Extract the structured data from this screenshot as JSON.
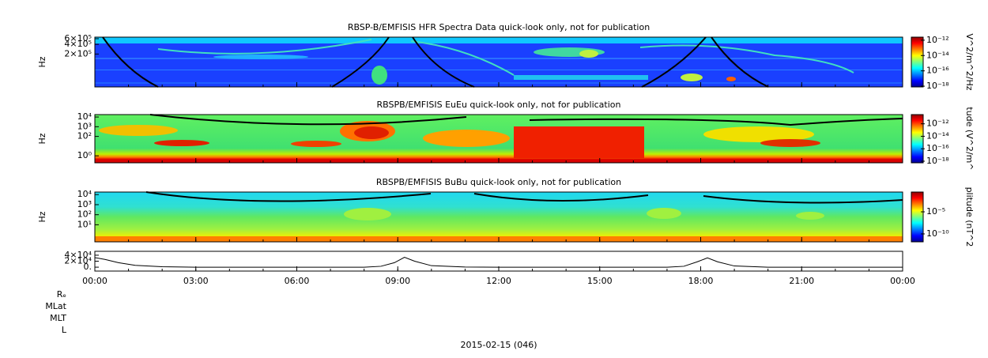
{
  "chart_data": [
    {
      "type": "spectrogram",
      "title": "RBSP-B/EMFISIS  HFR Spectra Data quick-look only, not for publication",
      "ylabel": "Hz",
      "log_y": true,
      "xlim": [
        0,
        24
      ],
      "ylim": [
        19000,
        670000
      ],
      "yticks": [
        {
          "value": 600000,
          "label": "6×10⁵"
        },
        {
          "value": 400000,
          "label": "4×10⁵"
        },
        {
          "value": 200000,
          "label": "2×10⁵"
        }
      ],
      "colorbar": {
        "label": "V^2/m^2/Hz",
        "zlim": [
          8e-19,
          2.5e-12
        ],
        "ticks": [
          {
            "value": 1e-12,
            "label": "10⁻¹²"
          },
          {
            "value": 1e-14,
            "label": "10⁻¹⁴"
          },
          {
            "value": 1e-16,
            "label": "10⁻¹⁶"
          },
          {
            "value": 1e-18,
            "label": "10⁻¹⁸"
          }
        ]
      }
    },
    {
      "type": "spectrogram",
      "title": "RBSPB/EMFISIS  EuEu quick-look only, not for publication",
      "ylabel": "Hz",
      "log_y": true,
      "xlim": [
        0,
        24
      ],
      "ylim": [
        0.19,
        17800
      ],
      "yticks": [
        {
          "value": 10000,
          "label": "10⁴"
        },
        {
          "value": 1000,
          "label": "10³"
        },
        {
          "value": 100,
          "label": "10²"
        },
        {
          "value": 1,
          "label": "10⁰"
        }
      ],
      "colorbar": {
        "label": "tude (V^2/m^",
        "zlim": [
          5.6e-19,
          3e-11
        ],
        "ticks": [
          {
            "value": 1e-12,
            "label": "10⁻¹²"
          },
          {
            "value": 1e-14,
            "label": "10⁻¹⁴"
          },
          {
            "value": 1e-16,
            "label": "10⁻¹⁶"
          },
          {
            "value": 1e-18,
            "label": "10⁻¹⁸"
          }
        ]
      }
    },
    {
      "type": "spectrogram",
      "title": "RBSPB/EMFISIS  BuBu quick-look only, not for publication",
      "ylabel": "Hz",
      "log_y": true,
      "xlim": [
        0,
        24
      ],
      "ylim": [
        0.2,
        18000
      ],
      "yticks": [
        {
          "value": 10000,
          "label": "10⁴"
        },
        {
          "value": 1000,
          "label": "10³"
        },
        {
          "value": 100,
          "label": "10²"
        },
        {
          "value": 10,
          "label": "10¹"
        }
      ],
      "colorbar": {
        "label": "plitude (nT^2",
        "zlim": [
          1.6e-12,
          0.3
        ],
        "ticks": [
          {
            "value": 1e-05,
            "label": "10⁻⁵"
          },
          {
            "value": 1e-10,
            "label": "10⁻¹⁰"
          }
        ]
      }
    },
    {
      "type": "line",
      "xlim": [
        0,
        24
      ],
      "ylim": [
        -13000,
        53000
      ],
      "yticks": [
        {
          "value": 40000,
          "label": "4×10⁴"
        },
        {
          "value": 20000,
          "label": "2×10⁴"
        },
        {
          "value": 0,
          "label": "0."
        }
      ],
      "xticks": [
        {
          "value": 0,
          "label": "00:00"
        },
        {
          "value": 3,
          "label": "03:00"
        },
        {
          "value": 6,
          "label": "06:00"
        },
        {
          "value": 9,
          "label": "09:00"
        },
        {
          "value": 12,
          "label": "12:00"
        },
        {
          "value": 15,
          "label": "15:00"
        },
        {
          "value": 18,
          "label": "18:00"
        },
        {
          "value": 21,
          "label": "21:00"
        },
        {
          "value": 24,
          "label": "00:00"
        }
      ],
      "x": [
        0,
        0.3,
        0.7,
        1.2,
        2,
        3,
        8,
        8.5,
        8.9,
        9.2,
        9.5,
        10,
        11,
        12,
        17,
        17.5,
        17.9,
        18.2,
        18.5,
        19,
        20,
        24
      ],
      "values": [
        32000,
        26000,
        15000,
        6000,
        1500,
        0,
        0,
        3000,
        15000,
        33000,
        20000,
        5000,
        500,
        0,
        0,
        3000,
        18000,
        31000,
        18000,
        4000,
        0,
        0
      ],
      "color": "#000000"
    }
  ],
  "ephemeris_labels": [
    "Rₑ",
    "MLat",
    "MLT",
    "L"
  ],
  "date": "2015-02-15 (046)"
}
